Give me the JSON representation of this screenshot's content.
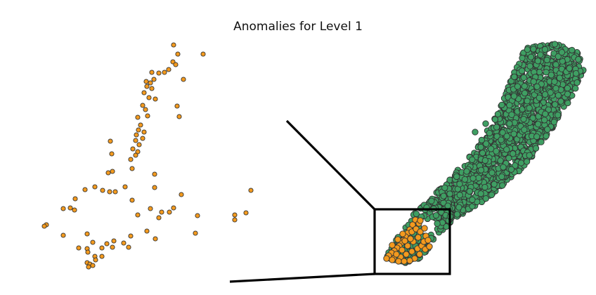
{
  "chart_data": {
    "type": "scatter",
    "title": "Anomalies for Level 1",
    "xlabel": "",
    "ylabel": "",
    "grid": false,
    "legend": "none",
    "colors": {
      "anomaly": "#f39a1e",
      "normal": "#3f9f63",
      "outline": "#333333",
      "inset_box": "#000000"
    },
    "panels": [
      {
        "name": "zoomed-anomalies",
        "series": [
          {
            "role": "anomaly",
            "points": [
              [
                247,
                64
              ],
              [
                253,
                77
              ],
              [
                289,
                77
              ],
              [
                246,
                88
              ],
              [
                250,
                92
              ],
              [
                240,
                99
              ],
              [
                234,
                103
              ],
              [
                226,
                104
              ],
              [
                216,
                103
              ],
              [
                219,
                113
              ],
              [
                261,
                113
              ],
              [
                208,
                116
              ],
              [
                214,
                118
              ],
              [
                209,
                123
              ],
              [
                216,
                126
              ],
              [
                205,
                132
              ],
              [
                212,
                139
              ],
              [
                221,
                141
              ],
              [
                203,
                150
              ],
              [
                207,
                156
              ],
              [
                252,
                151
              ],
              [
                196,
                167
              ],
              [
                210,
                165
              ],
              [
                255,
                166
              ],
              [
                200,
                178
              ],
              [
                197,
                185
              ],
              [
                205,
                188
              ],
              [
                194,
                192
              ],
              [
                193,
                200
              ],
              [
                203,
                197
              ],
              [
                198,
                206
              ],
              [
                157,
                201
              ],
              [
                189,
                212
              ],
              [
                196,
                216
              ],
              [
                193,
                221
              ],
              [
                159,
                219
              ],
              [
                186,
                227
              ],
              [
                188,
                240
              ],
              [
                160,
                244
              ],
              [
                154,
                246
              ],
              [
                220,
                248
              ],
              [
                178,
                266
              ],
              [
                135,
                266
              ],
              [
                121,
                270
              ],
              [
                146,
                271
              ],
              [
                156,
                273
              ],
              [
                164,
                273
              ],
              [
                220,
                267
              ],
              [
                258,
                277
              ],
              [
                107,
                283
              ],
              [
                100,
                296
              ],
              [
                188,
                285
              ],
              [
                106,
                299
              ],
              [
                90,
                297
              ],
              [
                214,
                297
              ],
              [
                247,
                296
              ],
              [
                241,
                302
              ],
              [
                230,
                302
              ],
              [
                226,
                310
              ],
              [
                196,
                306
              ],
              [
                281,
                307
              ],
              [
                350,
                303
              ],
              [
                334,
                306
              ],
              [
                334,
                313
              ],
              [
                357,
                271
              ],
              [
                278,
                332
              ],
              [
                66,
                320
              ],
              [
                63,
                322
              ],
              [
                90,
                335
              ],
              [
                124,
                333
              ],
              [
                132,
                345
              ],
              [
                186,
                336
              ],
              [
                162,
                343
              ],
              [
                176,
                346
              ],
              [
                152,
                347
              ],
              [
                183,
                352
              ],
              [
                160,
                352
              ],
              [
                145,
                353
              ],
              [
                112,
                353
              ],
              [
                124,
                354
              ],
              [
                125,
                359
              ],
              [
                145,
                365
              ],
              [
                135,
                365
              ],
              [
                136,
                370
              ],
              [
                124,
                374
              ],
              [
                128,
                376
              ],
              [
                132,
                378
              ],
              [
                126,
                380
              ],
              [
                221,
                340
              ],
              [
                209,
                329
              ]
            ]
          }
        ]
      },
      {
        "name": "full-dataset",
        "series": [
          {
            "role": "normal",
            "description_count": "dense cloud"
          },
          {
            "role": "anomaly",
            "points": [
              [
                591,
                313
              ],
              [
                587,
                320
              ],
              [
                583,
                327
              ],
              [
                580,
                332
              ],
              [
                577,
                337
              ],
              [
                574,
                342
              ],
              [
                571,
                346
              ],
              [
                568,
                350
              ],
              [
                565,
                353
              ],
              [
                561,
                357
              ],
              [
                557,
                360
              ],
              [
                553,
                364
              ],
              [
                550,
                368
              ],
              [
                560,
                368
              ],
              [
                570,
                366
              ],
              [
                578,
                362
              ],
              [
                586,
                358
              ],
              [
                594,
                354
              ],
              [
                600,
                350
              ],
              [
                605,
                355
              ],
              [
                597,
                362
              ],
              [
                590,
                368
              ],
              [
                583,
                371
              ],
              [
                575,
                372
              ],
              [
                567,
                372
              ],
              [
                558,
                370
              ],
              [
                564,
                362
              ],
              [
                572,
                356
              ],
              [
                580,
                350
              ],
              [
                588,
                344
              ],
              [
                595,
                338
              ],
              [
                584,
                340
              ],
              [
                576,
                343
              ],
              [
                586,
                330
              ],
              [
                592,
                326
              ],
              [
                596,
                318
              ],
              [
                598,
                330
              ],
              [
                606,
                336
              ],
              [
                603,
                344
              ],
              [
                611,
                351
              ],
              [
                609,
                342
              ],
              [
                604,
                325
              ],
              [
                598,
                314
              ],
              [
                573,
                333
              ],
              [
                566,
                341
              ],
              [
                558,
                349
              ]
            ]
          }
        ]
      }
    ]
  }
}
